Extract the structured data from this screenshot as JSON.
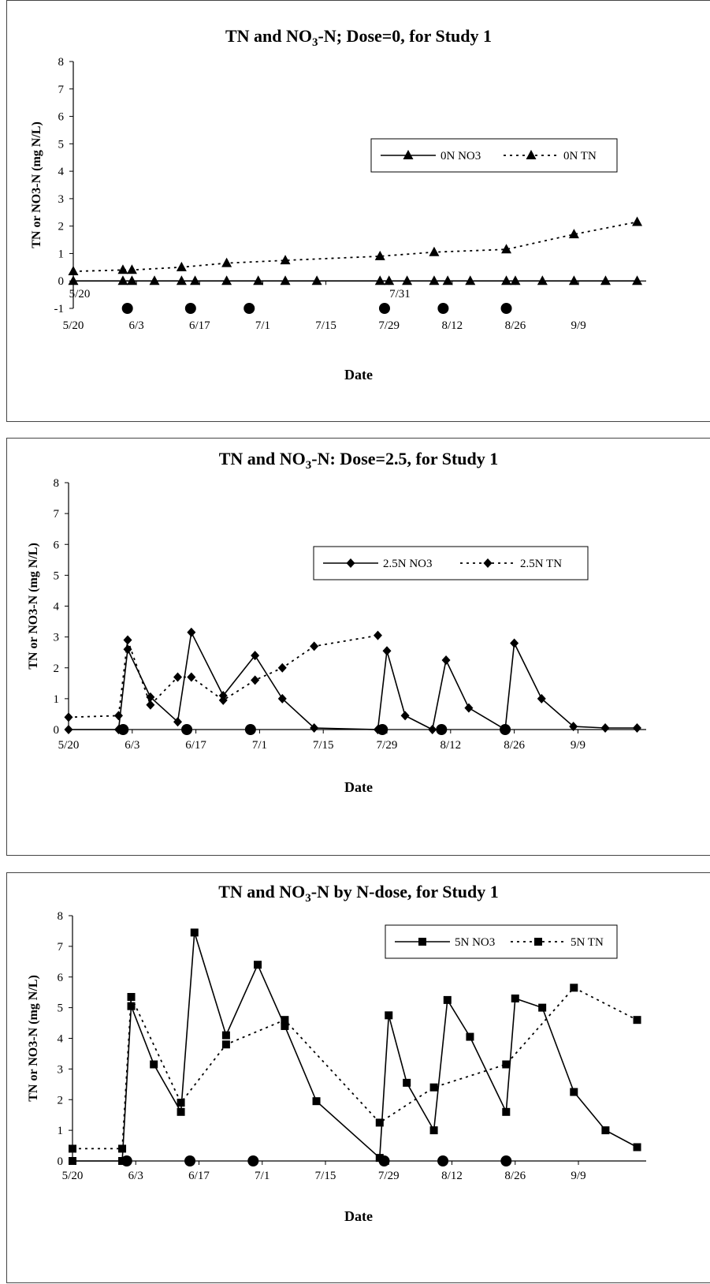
{
  "chart_data": [
    {
      "type": "line",
      "title_prefix": "TN and NO",
      "title_sub": "3",
      "title_suffix": "-N; Dose=0, for Study 1",
      "xlabel": "Date",
      "ylabel": "TN or NO3-N (mg N/L)",
      "ylim": [
        -1,
        8
      ],
      "yticks": [
        -1,
        0,
        1,
        2,
        3,
        4,
        5,
        6,
        7,
        8
      ],
      "xlim": [
        "2003-05-20",
        "2003-09-24"
      ],
      "xticks": [
        {
          "date": "2003-05-20",
          "label": "5/20"
        },
        {
          "date": "2003-06-03",
          "label": "6/3"
        },
        {
          "date": "2003-06-17",
          "label": "6/17"
        },
        {
          "date": "2003-07-01",
          "label": "7/1"
        },
        {
          "date": "2003-07-15",
          "label": "7/15"
        },
        {
          "date": "2003-07-29",
          "label": "7/29"
        },
        {
          "date": "2003-08-12",
          "label": "8/12"
        },
        {
          "date": "2003-08-26",
          "label": "8/26"
        },
        {
          "date": "2003-09-09",
          "label": "9/9"
        }
      ],
      "annotations": [
        {
          "date": "2003-05-20",
          "value": -0.6,
          "text": "5/20"
        },
        {
          "date": "2003-07-30",
          "value": -0.6,
          "text": "7/31"
        }
      ],
      "dose_dates": [
        "2003-06-01",
        "2003-06-15",
        "2003-06-28",
        "2003-07-28",
        "2003-08-10",
        "2003-08-24"
      ],
      "dose_level": -1,
      "marker": "triangle",
      "legend": {
        "position": "top-right"
      },
      "series": [
        {
          "name": "0N NO3",
          "style": "solid",
          "points": [
            [
              "2003-05-20",
              0
            ],
            [
              "2003-05-31",
              0
            ],
            [
              "2003-06-02",
              0
            ],
            [
              "2003-06-07",
              0
            ],
            [
              "2003-06-13",
              0
            ],
            [
              "2003-06-16",
              0
            ],
            [
              "2003-06-23",
              0
            ],
            [
              "2003-06-30",
              0
            ],
            [
              "2003-07-06",
              0
            ],
            [
              "2003-07-13",
              0
            ],
            [
              "2003-07-27",
              0
            ],
            [
              "2003-07-29",
              0
            ],
            [
              "2003-08-02",
              0
            ],
            [
              "2003-08-08",
              0
            ],
            [
              "2003-08-11",
              0
            ],
            [
              "2003-08-16",
              0
            ],
            [
              "2003-08-24",
              0
            ],
            [
              "2003-08-26",
              0
            ],
            [
              "2003-09-01",
              0
            ],
            [
              "2003-09-08",
              0
            ],
            [
              "2003-09-15",
              0
            ],
            [
              "2003-09-22",
              0
            ]
          ]
        },
        {
          "name": "0N TN",
          "style": "dotted",
          "points": [
            [
              "2003-05-20",
              0.35
            ],
            [
              "2003-05-31",
              0.4
            ],
            [
              "2003-06-02",
              0.4
            ],
            [
              "2003-06-13",
              0.5
            ],
            [
              "2003-06-23",
              0.65
            ],
            [
              "2003-07-06",
              0.75
            ],
            [
              "2003-07-27",
              0.9
            ],
            [
              "2003-08-08",
              1.05
            ],
            [
              "2003-08-24",
              1.15
            ],
            [
              "2003-09-08",
              1.7
            ],
            [
              "2003-09-22",
              2.15
            ]
          ]
        }
      ]
    },
    {
      "type": "line",
      "title_prefix": "TN and NO",
      "title_sub": "3",
      "title_suffix": "-N: Dose=2.5, for Study 1",
      "xlabel": "Date",
      "ylabel": "TN or NO3-N (mg N/L)",
      "ylim": [
        0,
        8
      ],
      "yticks": [
        0,
        1,
        2,
        3,
        4,
        5,
        6,
        7,
        8
      ],
      "xlim": [
        "2003-05-20",
        "2003-09-24"
      ],
      "xticks": [
        {
          "date": "2003-05-20",
          "label": "5/20"
        },
        {
          "date": "2003-06-03",
          "label": "6/3"
        },
        {
          "date": "2003-06-17",
          "label": "6/17"
        },
        {
          "date": "2003-07-01",
          "label": "7/1"
        },
        {
          "date": "2003-07-15",
          "label": "7/15"
        },
        {
          "date": "2003-07-29",
          "label": "7/29"
        },
        {
          "date": "2003-08-12",
          "label": "8/12"
        },
        {
          "date": "2003-08-26",
          "label": "8/26"
        },
        {
          "date": "2003-09-09",
          "label": "9/9"
        }
      ],
      "annotations": [],
      "dose_dates": [
        "2003-06-01",
        "2003-06-15",
        "2003-06-29",
        "2003-07-28",
        "2003-08-10",
        "2003-08-24"
      ],
      "dose_level": 0,
      "marker": "diamond",
      "legend": {
        "position": "top-right"
      },
      "series": [
        {
          "name": "2.5N NO3",
          "style": "solid",
          "points": [
            [
              "2003-05-20",
              0
            ],
            [
              "2003-05-31",
              0
            ],
            [
              "2003-06-02",
              2.6
            ],
            [
              "2003-06-07",
              1.05
            ],
            [
              "2003-06-13",
              0.25
            ],
            [
              "2003-06-16",
              3.15
            ],
            [
              "2003-06-23",
              1.1
            ],
            [
              "2003-06-30",
              2.4
            ],
            [
              "2003-07-06",
              1
            ],
            [
              "2003-07-13",
              0.05
            ],
            [
              "2003-07-27",
              0
            ],
            [
              "2003-07-29",
              2.55
            ],
            [
              "2003-08-02",
              0.45
            ],
            [
              "2003-08-08",
              0
            ],
            [
              "2003-08-11",
              2.25
            ],
            [
              "2003-08-16",
              0.7
            ],
            [
              "2003-08-24",
              0
            ],
            [
              "2003-08-26",
              2.8
            ],
            [
              "2003-09-01",
              1
            ],
            [
              "2003-09-08",
              0.1
            ],
            [
              "2003-09-15",
              0.05
            ],
            [
              "2003-09-22",
              0.05
            ]
          ]
        },
        {
          "name": "2.5N TN",
          "style": "dotted",
          "points": [
            [
              "2003-05-20",
              0.4
            ],
            [
              "2003-05-31",
              0.45
            ],
            [
              "2003-06-02",
              2.9
            ],
            [
              "2003-06-07",
              0.8
            ],
            [
              "2003-06-13",
              1.7
            ],
            [
              "2003-06-16",
              1.7
            ],
            [
              "2003-06-23",
              0.95
            ],
            [
              "2003-06-30",
              1.6
            ],
            [
              "2003-07-06",
              2
            ],
            [
              "2003-07-13",
              2.7
            ],
            [
              "2003-07-27",
              3.05
            ]
          ]
        }
      ]
    },
    {
      "type": "line",
      "title_prefix": "TN and NO",
      "title_sub": "3",
      "title_suffix": "-N by N-dose, for Study 1",
      "xlabel": "Date",
      "ylabel": "TN or NO3-N (mg N/L)",
      "ylim": [
        0,
        8
      ],
      "yticks": [
        0,
        1,
        2,
        3,
        4,
        5,
        6,
        7,
        8
      ],
      "xlim": [
        "2003-05-20",
        "2003-09-24"
      ],
      "xticks": [
        {
          "date": "2003-05-20",
          "label": "5/20"
        },
        {
          "date": "2003-06-03",
          "label": "6/3"
        },
        {
          "date": "2003-06-17",
          "label": "6/17"
        },
        {
          "date": "2003-07-01",
          "label": "7/1"
        },
        {
          "date": "2003-07-15",
          "label": "7/15"
        },
        {
          "date": "2003-07-29",
          "label": "7/29"
        },
        {
          "date": "2003-08-12",
          "label": "8/12"
        },
        {
          "date": "2003-08-26",
          "label": "8/26"
        },
        {
          "date": "2003-09-09",
          "label": "9/9"
        }
      ],
      "annotations": [],
      "dose_dates": [
        "2003-06-01",
        "2003-06-15",
        "2003-06-29",
        "2003-07-28",
        "2003-08-10",
        "2003-08-24"
      ],
      "dose_level": 0,
      "marker": "square",
      "legend": {
        "position": "top-right"
      },
      "series": [
        {
          "name": "5N NO3",
          "style": "solid",
          "points": [
            [
              "2003-05-20",
              0
            ],
            [
              "2003-05-31",
              0
            ],
            [
              "2003-06-02",
              5.05
            ],
            [
              "2003-06-07",
              3.15
            ],
            [
              "2003-06-13",
              1.6
            ],
            [
              "2003-06-16",
              7.45
            ],
            [
              "2003-06-23",
              4.1
            ],
            [
              "2003-06-30",
              6.4
            ],
            [
              "2003-07-06",
              4.4
            ],
            [
              "2003-07-13",
              1.95
            ],
            [
              "2003-07-27",
              0.1
            ],
            [
              "2003-07-29",
              4.75
            ],
            [
              "2003-08-02",
              2.55
            ],
            [
              "2003-08-08",
              1
            ],
            [
              "2003-08-11",
              5.25
            ],
            [
              "2003-08-16",
              4.05
            ],
            [
              "2003-08-24",
              1.6
            ],
            [
              "2003-08-26",
              5.3
            ],
            [
              "2003-09-01",
              5
            ],
            [
              "2003-09-08",
              2.25
            ],
            [
              "2003-09-15",
              1
            ],
            [
              "2003-09-22",
              0.45
            ]
          ]
        },
        {
          "name": "5N TN",
          "style": "dotted",
          "points": [
            [
              "2003-05-20",
              0.4
            ],
            [
              "2003-05-31",
              0.4
            ],
            [
              "2003-06-02",
              5.35
            ],
            [
              "2003-06-13",
              1.9
            ],
            [
              "2003-06-23",
              3.8
            ],
            [
              "2003-07-06",
              4.6
            ],
            [
              "2003-07-27",
              1.25
            ],
            [
              "2003-08-08",
              2.4
            ],
            [
              "2003-08-24",
              3.15
            ],
            [
              "2003-09-08",
              5.65
            ],
            [
              "2003-09-22",
              4.6
            ]
          ]
        }
      ]
    }
  ]
}
